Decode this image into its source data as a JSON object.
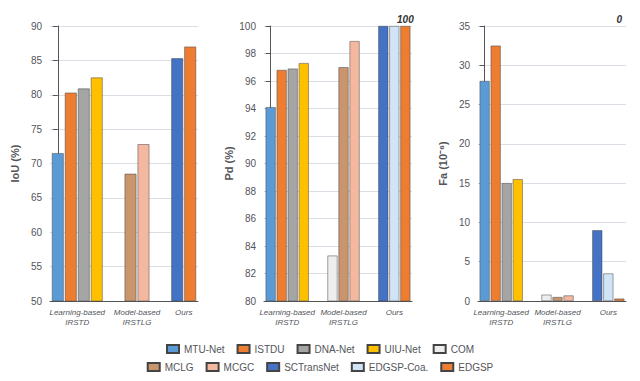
{
  "chart_data": [
    {
      "type": "bar",
      "ylabel": "IoU (%)",
      "categories": [
        "Learning-based\nIRSTD",
        "Model-based\nIRSTLG",
        "Ours"
      ],
      "series": [
        {
          "name": "MTU-Net",
          "color": "#5b9bd5",
          "values": [
            71.5,
            null,
            null
          ]
        },
        {
          "name": "ISTDU",
          "color": "#ed7d31",
          "values": [
            80.3,
            null,
            null
          ]
        },
        {
          "name": "DNA-Net",
          "color": "#a5a5a5",
          "values": [
            80.9,
            null,
            null
          ]
        },
        {
          "name": "UIU-Net",
          "color": "#ffc000",
          "values": [
            82.5,
            null,
            null
          ]
        },
        {
          "name": "MCLG",
          "color": "#c9956c",
          "values": [
            null,
            68.5,
            null
          ]
        },
        {
          "name": "MCGC",
          "color": "#f4b8a0",
          "values": [
            null,
            72.8,
            null
          ]
        },
        {
          "name": "SCTransNet",
          "color": "#4472c4",
          "values": [
            null,
            null,
            85.3
          ]
        },
        {
          "name": "EDGSP",
          "color": "#ed7d31",
          "values": [
            null,
            null,
            87.0
          ]
        }
      ],
      "ylim": [
        50,
        90
      ],
      "yticks": [
        50,
        55,
        60,
        65,
        70,
        75,
        80,
        85,
        90
      ],
      "grid": true,
      "legend": "bottom"
    },
    {
      "type": "bar",
      "ylabel": "Pd (%)",
      "categories": [
        "Learning-based\nIRSTD",
        "Model-based\nIRSTLG",
        "Ours"
      ],
      "series": [
        {
          "name": "MTU-Net",
          "color": "#5b9bd5",
          "values": [
            94.1,
            null,
            null
          ]
        },
        {
          "name": "ISTDU",
          "color": "#ed7d31",
          "values": [
            96.8,
            null,
            null
          ]
        },
        {
          "name": "DNA-Net",
          "color": "#a5a5a5",
          "values": [
            96.9,
            null,
            null
          ]
        },
        {
          "name": "UIU-Net",
          "color": "#ffc000",
          "values": [
            97.3,
            null,
            null
          ]
        },
        {
          "name": "COM",
          "color": "#eeeeee",
          "values": [
            null,
            83.3,
            null
          ]
        },
        {
          "name": "MCLG",
          "color": "#c9956c",
          "values": [
            null,
            97.0,
            null
          ]
        },
        {
          "name": "MCGC",
          "color": "#f4b8a0",
          "values": [
            null,
            98.9,
            null
          ]
        },
        {
          "name": "SCTransNet",
          "color": "#4472c4",
          "values": [
            null,
            null,
            100.0
          ]
        },
        {
          "name": "EDGSP-Coa.",
          "color": "#d0e4f5",
          "values": [
            null,
            null,
            100.0
          ]
        },
        {
          "name": "EDGSP",
          "color": "#ed7d31",
          "values": [
            null,
            null,
            100.0
          ]
        }
      ],
      "ylim": [
        80,
        100
      ],
      "yticks": [
        80,
        82,
        84,
        86,
        88,
        90,
        92,
        94,
        96,
        98,
        100
      ],
      "grid": true,
      "legend": "bottom",
      "annotations": [
        "100"
      ]
    },
    {
      "type": "bar",
      "ylabel": "Fa (10⁻⁶)",
      "categories": [
        "Learning-based\nIRSTD",
        "Model-based\nIRSTLG",
        "Ours"
      ],
      "series": [
        {
          "name": "MTU-Net",
          "color": "#5b9bd5",
          "values": [
            28.0,
            null,
            null
          ]
        },
        {
          "name": "ISTDU",
          "color": "#ed7d31",
          "values": [
            32.5,
            null,
            null
          ]
        },
        {
          "name": "DNA-Net",
          "color": "#a5a5a5",
          "values": [
            15.0,
            null,
            null
          ]
        },
        {
          "name": "UIU-Net",
          "color": "#ffc000",
          "values": [
            15.5,
            null,
            null
          ]
        },
        {
          "name": "COM",
          "color": "#eeeeee",
          "values": [
            null,
            0.8,
            null
          ]
        },
        {
          "name": "MCLG",
          "color": "#c9956c",
          "values": [
            null,
            0.5,
            null
          ]
        },
        {
          "name": "MCGC",
          "color": "#f4b8a0",
          "values": [
            null,
            0.7,
            null
          ]
        },
        {
          "name": "SCTransNet",
          "color": "#4472c4",
          "values": [
            null,
            null,
            9.0
          ]
        },
        {
          "name": "EDGSP-Coa.",
          "color": "#d0e4f5",
          "values": [
            null,
            null,
            3.5
          ]
        },
        {
          "name": "EDGSP",
          "color": "#ed7d31",
          "values": [
            null,
            null,
            0.3
          ]
        }
      ],
      "ylim": [
        0,
        35
      ],
      "yticks": [
        0,
        5,
        10,
        15,
        20,
        25,
        30,
        35
      ],
      "grid": true,
      "legend": "bottom",
      "annotations": [
        "0"
      ]
    }
  ]
}
